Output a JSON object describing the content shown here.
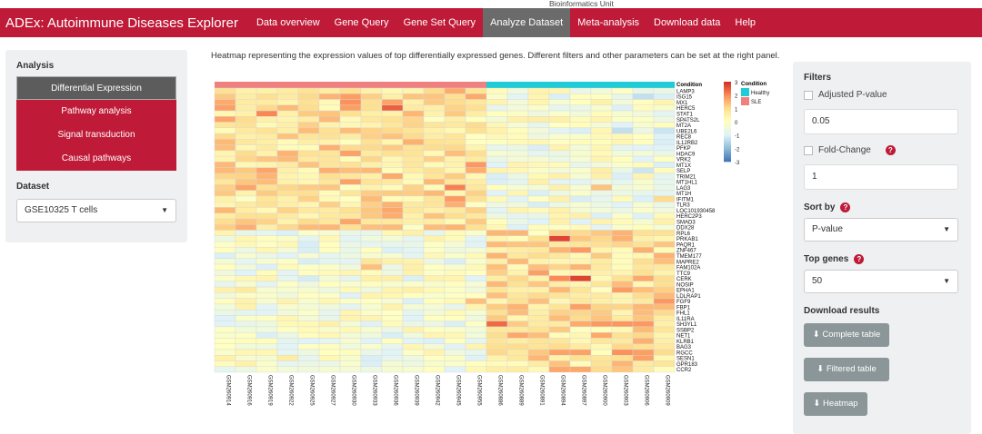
{
  "top_note": "Bioinformatics Unit",
  "nav": {
    "brand": "ADEx: Autoimmune Diseases Explorer",
    "items": [
      "Data overview",
      "Gene Query",
      "Gene Set Query",
      "Analyze Dataset",
      "Meta-analysis",
      "Download data",
      "Help"
    ],
    "active": 3
  },
  "sidebar": {
    "analysis_label": "Analysis",
    "items": [
      "Differential Expression",
      "Pathway analysis",
      "Signal transduction",
      "Causal pathways"
    ],
    "active": 0,
    "dataset_label": "Dataset",
    "dataset_value": "GSE10325 T cells"
  },
  "description": "Heatmap representing the expression values of top differentially expressed genes. Different filters and other parameters can be set at the right panel.",
  "filters": {
    "title": "Filters",
    "adj_pvalue_label": "Adjusted P-value",
    "adj_pvalue_value": "0.05",
    "adj_pvalue_checked": false,
    "fc_label": "Fold-Change",
    "fc_value": "1",
    "fc_checked": false,
    "sort_label": "Sort by",
    "sort_value": "P-value",
    "top_label": "Top genes",
    "top_value": "50",
    "download_label": "Download results",
    "buttons": [
      "Complete table",
      "Filtered table",
      "Heatmap"
    ]
  },
  "colors": {
    "brand": "#bf1a37",
    "healthy": "#1ecbd6",
    "sle": "#f08080"
  },
  "chart_data": {
    "type": "heatmap",
    "annotation_title": "Condition",
    "legend": {
      "title": "Condition",
      "entries": [
        "Healthy",
        "SLE"
      ]
    },
    "color_scale": {
      "min": -3,
      "max": 3,
      "ticks": [
        "3",
        "2",
        "1",
        "0",
        "-1",
        "-2",
        "-3"
      ]
    },
    "columns": [
      "GSM260914",
      "GSM260916",
      "GSM260919",
      "GSM260922",
      "GSM260925",
      "GSM260927",
      "GSM260930",
      "GSM260933",
      "GSM260936",
      "GSM260939",
      "GSM260942",
      "GSM260945",
      "GSM260955",
      "GSM260886",
      "GSM260889",
      "GSM260891",
      "GSM260894",
      "GSM260897",
      "GSM260900",
      "GSM260903",
      "GSM260906",
      "GSM260909"
    ],
    "column_condition": [
      "SLE",
      "SLE",
      "SLE",
      "SLE",
      "SLE",
      "SLE",
      "SLE",
      "SLE",
      "SLE",
      "SLE",
      "SLE",
      "SLE",
      "SLE",
      "Healthy",
      "Healthy",
      "Healthy",
      "Healthy",
      "Healthy",
      "Healthy",
      "Healthy",
      "Healthy",
      "Healthy"
    ],
    "rows": [
      "LAMP3",
      "ISG15",
      "MX1",
      "HERC5",
      "STAT1",
      "SPATS2L",
      "MT2A",
      "UBE2L6",
      "REC8",
      "IL12RB2",
      "PFKP",
      "HDAC9",
      "VRK2",
      "MT1X",
      "SELP",
      "TRIM21",
      "MT1HL1",
      "LAG3",
      "MT1H",
      "IFITM1",
      "TLR3",
      "LOC101930458",
      "HERC2P3",
      "SMAD3",
      "DDX28",
      "RPL6",
      "PRKAB1",
      "PAQR1",
      "ZNF467",
      "TMEM177",
      "MAPRE2",
      "FAM102A",
      "TTC9",
      "CERK",
      "NOSIP",
      "EPHA1",
      "LDLRAP1",
      "FGF9",
      "FBP1",
      "FHL1",
      "IL11RA",
      "SH3YL1",
      "SSBP2",
      "NET1",
      "KLRB1",
      "BAG3",
      "RGCC",
      "SESN1",
      "GPR183",
      "CCR2"
    ]
  }
}
